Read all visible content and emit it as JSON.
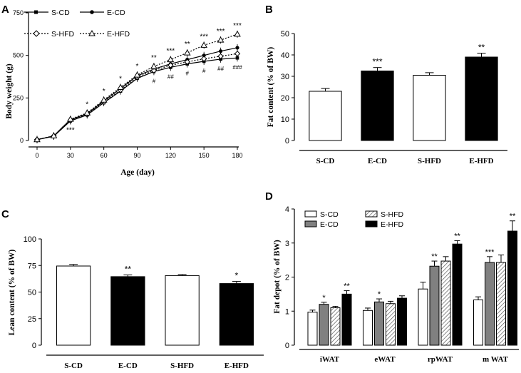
{
  "chart_data": [
    {
      "panel": "A",
      "type": "line",
      "title": "",
      "xlabel": "Age (day)",
      "ylabel": "Body weight (g)",
      "x": [
        0,
        15,
        30,
        45,
        60,
        75,
        90,
        105,
        120,
        135,
        150,
        165,
        180
      ],
      "xticks": [
        "0",
        "30",
        "60",
        "90",
        "120",
        "150",
        "180"
      ],
      "xticks_values": [
        0,
        30,
        60,
        90,
        120,
        150,
        180
      ],
      "yticks": [
        "0",
        "250",
        "500",
        "750"
      ],
      "yticks_values": [
        0,
        250,
        500,
        750
      ],
      "xlim": [
        0,
        180
      ],
      "ylim": [
        0,
        750
      ],
      "series": [
        {
          "name": "S-CD",
          "values": [
            5,
            25,
            115,
            150,
            222,
            290,
            365,
            405,
            430,
            450,
            465,
            478,
            485
          ]
        },
        {
          "name": "E-CD",
          "values": [
            5,
            27,
            122,
            158,
            232,
            305,
            380,
            420,
            450,
            475,
            500,
            525,
            545
          ]
        },
        {
          "name": "S-HFD",
          "values": [
            5,
            26,
            118,
            153,
            226,
            296,
            372,
            412,
            442,
            462,
            480,
            495,
            510
          ]
        },
        {
          "name": "E-HFD",
          "values": [
            5,
            28,
            125,
            162,
            238,
            312,
            385,
            435,
            475,
            515,
            560,
            590,
            625
          ]
        }
      ],
      "star_annotations": [
        {
          "x": 30,
          "text": "***"
        },
        {
          "x": 45,
          "text": "*"
        },
        {
          "x": 60,
          "text": "*"
        },
        {
          "x": 75,
          "text": "*"
        },
        {
          "x": 90,
          "text": "*"
        },
        {
          "x": 105,
          "text": "**"
        },
        {
          "x": 120,
          "text": "***"
        },
        {
          "x": 135,
          "text": "**"
        },
        {
          "x": 150,
          "text": "***"
        },
        {
          "x": 165,
          "text": "***"
        },
        {
          "x": 180,
          "text": "***"
        }
      ],
      "hash_annotations": [
        {
          "x": 105,
          "text": "#"
        },
        {
          "x": 120,
          "text": "##"
        },
        {
          "x": 135,
          "text": "#"
        },
        {
          "x": 150,
          "text": "#"
        },
        {
          "x": 165,
          "text": "##"
        },
        {
          "x": 180,
          "text": "###"
        }
      ]
    },
    {
      "panel": "B",
      "type": "bar",
      "title": "",
      "xlabel": "",
      "ylabel": "Fat content (% of BW)",
      "categories": [
        "S-CD",
        "E-CD",
        "S-HFD",
        "E-HFD"
      ],
      "values": [
        23,
        32.5,
        30.5,
        39
      ],
      "errors": [
        1.3,
        1.6,
        1.2,
        1.8
      ],
      "significance": [
        "",
        "***",
        "",
        "**"
      ],
      "ylim": [
        0,
        50
      ],
      "yticks": [
        "0",
        "10",
        "20",
        "30",
        "40",
        "50"
      ],
      "yticks_values": [
        0,
        10,
        20,
        30,
        40,
        50
      ]
    },
    {
      "panel": "C",
      "type": "bar",
      "title": "",
      "xlabel": "",
      "ylabel": "Lean content (% of BW)",
      "categories": [
        "S-CD",
        "E-CD",
        "S-HFD",
        "E-HFD"
      ],
      "values": [
        74.5,
        64.5,
        65.5,
        58
      ],
      "errors": [
        1.5,
        1.6,
        1.0,
        2.0
      ],
      "significance": [
        "",
        "**",
        "",
        "*"
      ],
      "ylim": [
        0,
        100
      ],
      "yticks": [
        "0",
        "25",
        "50",
        "75",
        "100"
      ],
      "yticks_values": [
        0,
        25,
        50,
        75,
        100
      ]
    },
    {
      "panel": "D",
      "type": "bar",
      "title": "",
      "xlabel": "",
      "ylabel": "Fat depot (% of BW)",
      "categories": [
        "iWAT",
        "eWAT",
        "rpWAT",
        "m WAT"
      ],
      "series": [
        {
          "name": "S-CD",
          "values": [
            0.97,
            1.02,
            1.65,
            1.33
          ],
          "errors": [
            0.06,
            0.07,
            0.2,
            0.09
          ],
          "sig": [
            "",
            "",
            "",
            ""
          ]
        },
        {
          "name": "E-CD",
          "values": [
            1.2,
            1.27,
            2.32,
            2.43
          ],
          "errors": [
            0.06,
            0.09,
            0.15,
            0.17
          ],
          "sig": [
            "*",
            "*",
            "**",
            "***"
          ]
        },
        {
          "name": "S-HFD",
          "values": [
            1.1,
            1.22,
            2.47,
            2.43
          ],
          "errors": [
            0.04,
            0.07,
            0.13,
            0.22
          ],
          "sig": [
            "",
            "",
            "",
            ""
          ]
        },
        {
          "name": "E-HFD",
          "values": [
            1.5,
            1.38,
            2.97,
            3.35
          ],
          "errors": [
            0.1,
            0.07,
            0.1,
            0.3
          ],
          "sig": [
            "**",
            "",
            "**",
            "**"
          ]
        }
      ],
      "ylim": [
        0,
        4
      ],
      "yticks": [
        "0",
        "1",
        "2",
        "3",
        "4"
      ],
      "yticks_values": [
        0,
        1,
        2,
        3,
        4
      ],
      "legend": [
        "S-CD",
        "S-HFD",
        "E-CD",
        "E-HFD"
      ]
    }
  ]
}
